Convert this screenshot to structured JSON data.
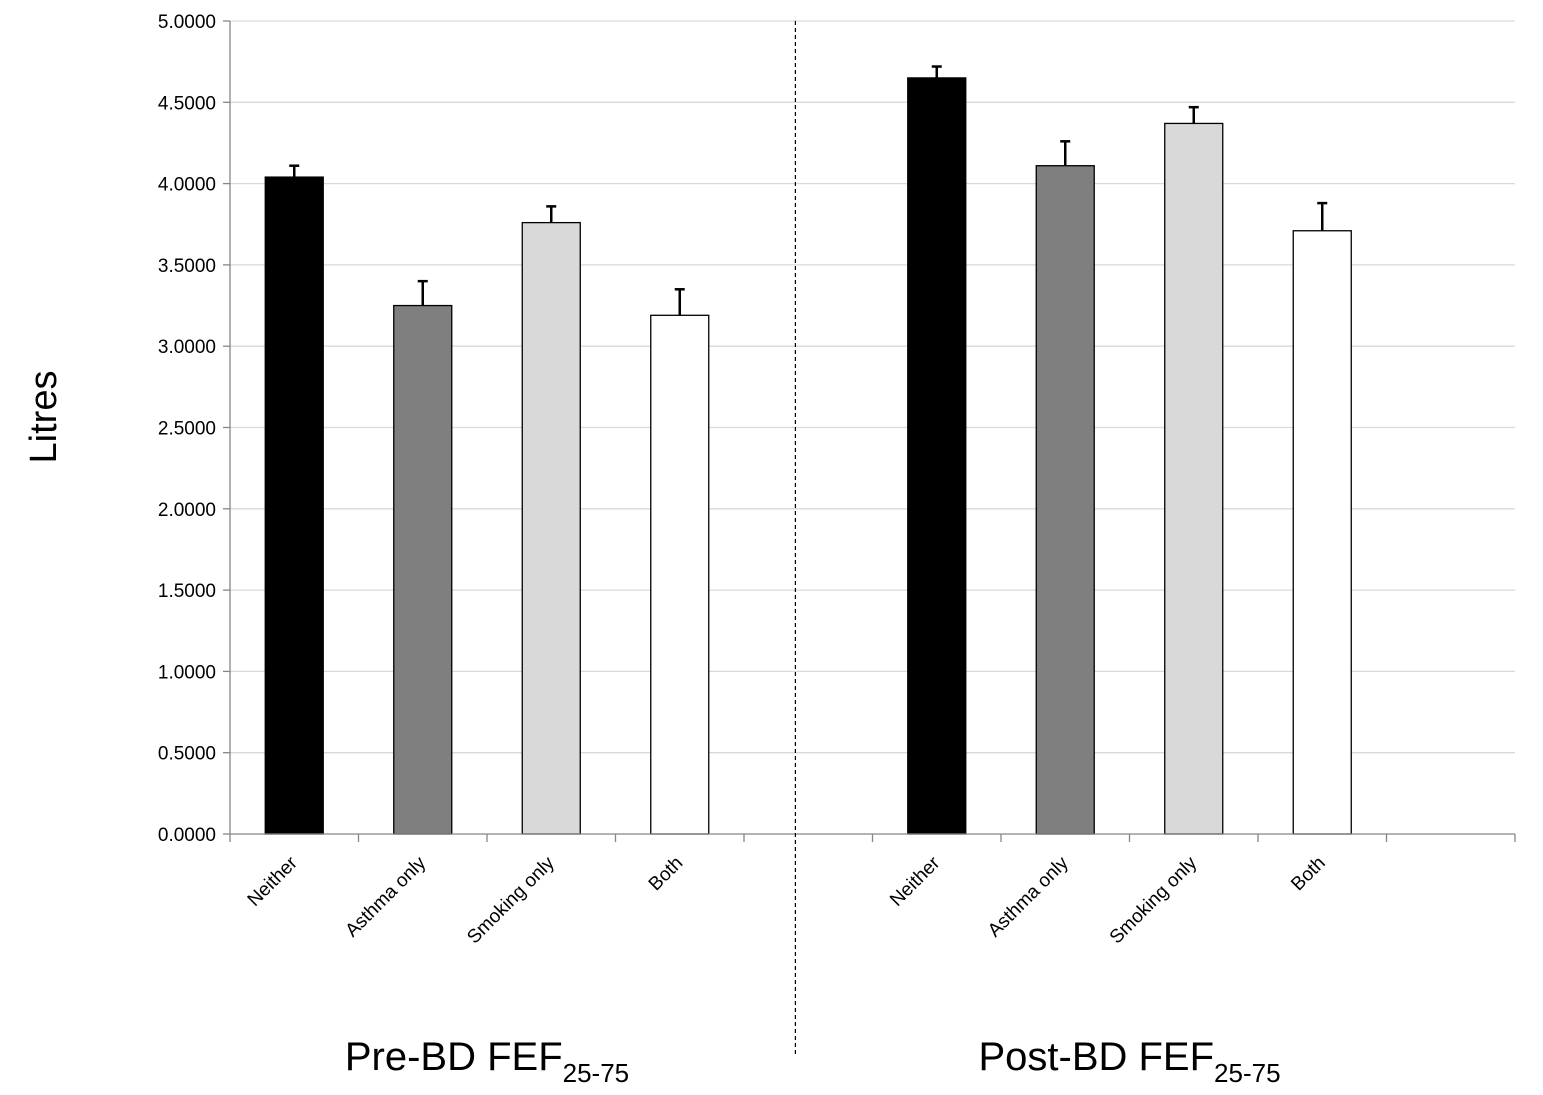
{
  "chart_data": {
    "type": "bar",
    "ylabel": "Litres",
    "ylim": [
      0,
      5
    ],
    "yticks": [
      "0.0000",
      "0.5000",
      "1.0000",
      "1.5000",
      "2.0000",
      "2.5000",
      "3.0000",
      "3.5000",
      "4.0000",
      "4.5000",
      "5.0000"
    ],
    "grid": true,
    "categories": [
      "Neither",
      "Asthma only",
      "Smoking only",
      "Both"
    ],
    "category_colors": [
      "#000000",
      "#7f7f7f",
      "#d9d9d9",
      "#ffffff"
    ],
    "groups": [
      {
        "label_main": "Pre-BD FEF",
        "label_sub": "25-75",
        "values": [
          4.04,
          3.25,
          3.76,
          3.19
        ],
        "error_upper": [
          0.07,
          0.15,
          0.1,
          0.16
        ]
      },
      {
        "label_main": "Post-BD FEF",
        "label_sub": "25-75",
        "values": [
          4.65,
          4.11,
          4.37,
          3.71
        ],
        "error_upper": [
          0.07,
          0.15,
          0.1,
          0.17
        ]
      }
    ]
  }
}
